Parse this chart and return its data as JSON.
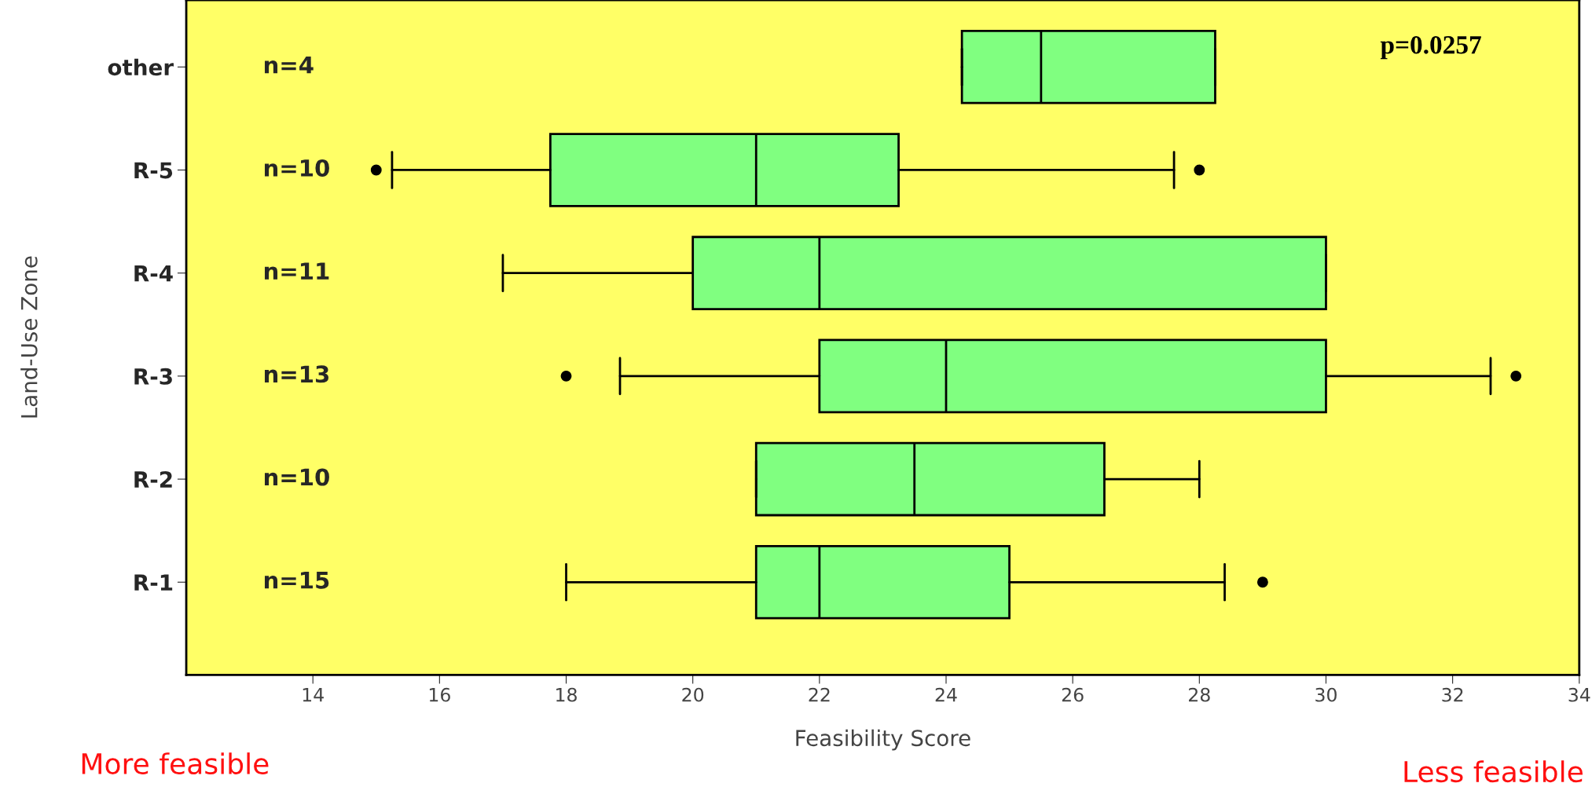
{
  "chart_data": {
    "type": "box",
    "orientation": "horizontal",
    "xlabel": "Feasibility Score",
    "ylabel": "Land-Use Zone",
    "categories": [
      "other",
      "R-5",
      "R-4",
      "R-3",
      "R-2",
      "R-1"
    ],
    "color": "#80ff80",
    "boxes": [
      {
        "low": 24.25,
        "q1": 24.25,
        "median": 25.5,
        "q3": 28.25,
        "high": 28.25
      },
      {
        "low": 15.25,
        "q1": 17.75,
        "median": 21.0,
        "q3": 23.25,
        "high": 27.6,
        "outliers": [
          15.0,
          28.0
        ]
      },
      {
        "low": 17.0,
        "q1": 20.0,
        "median": 22.0,
        "q3": 30.0,
        "high": 30.0
      },
      {
        "low": 18.85,
        "q1": 22.0,
        "median": 24.0,
        "q3": 30.0,
        "high": 32.6,
        "outliers": [
          18.0,
          33.0
        ]
      },
      {
        "low": 21.0,
        "q1": 21.0,
        "median": 23.5,
        "q3": 26.5,
        "high": 28.0
      },
      {
        "low": 18.0,
        "q1": 21.0,
        "median": 22.0,
        "q3": 25.0,
        "high": 28.4,
        "outliers": [
          29.0
        ]
      }
    ],
    "xlim": [
      12,
      34
    ],
    "xticks": [
      14,
      16,
      18,
      20,
      22,
      24,
      26,
      28,
      30,
      32,
      34
    ],
    "grid": false,
    "annotations": [
      "n=4",
      "n=10",
      "n=11",
      "n=13",
      "n=10",
      "n=15",
      "p=0.0257",
      "More feasible",
      "Less feasible"
    ]
  }
}
